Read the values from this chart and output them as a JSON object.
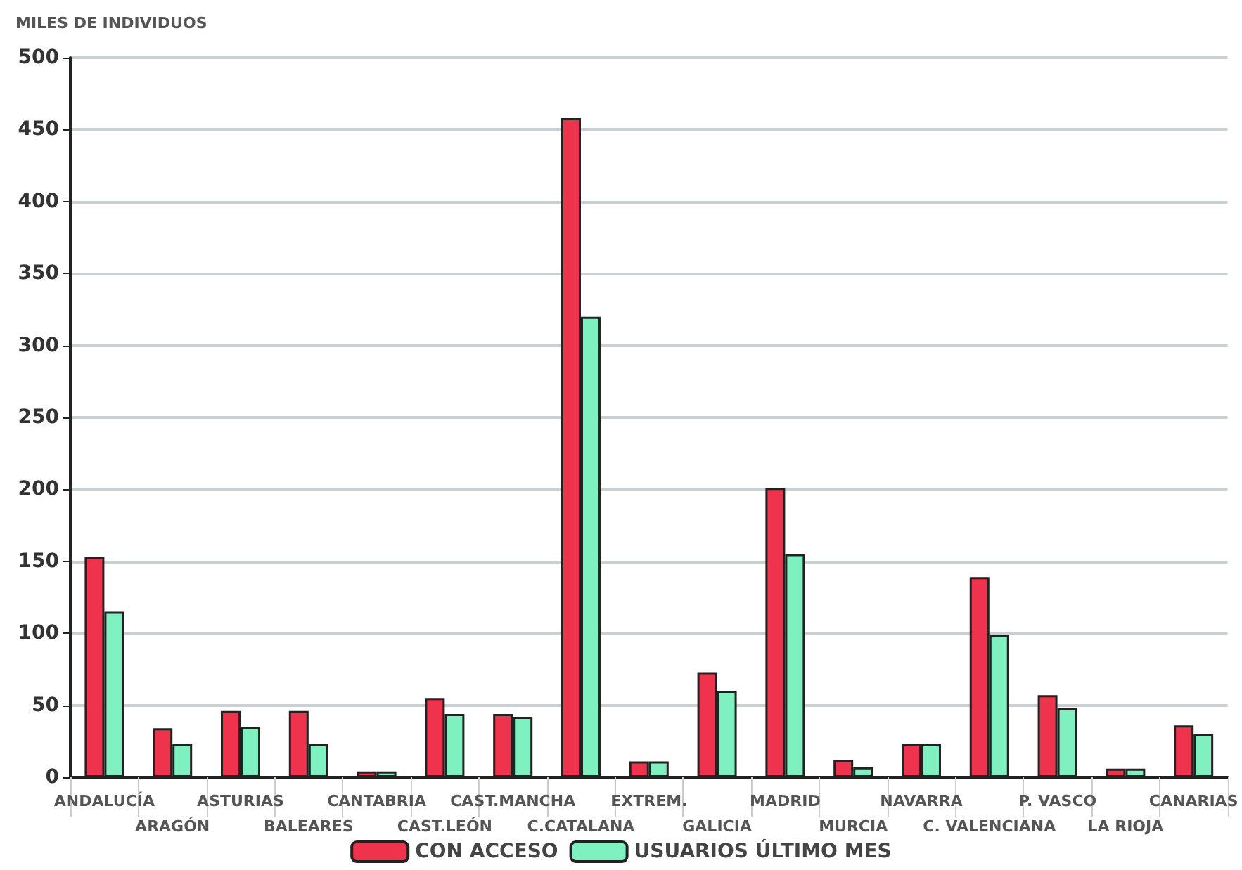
{
  "chart_data": {
    "type": "bar",
    "ylabel": "MILES DE INDIVIDUOS",
    "categories": [
      "ANDALUCÍA",
      "ARAGÓN",
      "ASTURIAS",
      "BALEARES",
      "CANTABRIA",
      "CAST.LEÓN",
      "CAST.MANCHA",
      "C.CATALANA",
      "EXTREM.",
      "GALICIA",
      "MADRID",
      "MURCIA",
      "NAVARRA",
      "C. VALENCIANA",
      "P. VASCO",
      "LA RIOJA",
      "CANARIAS"
    ],
    "series": [
      {
        "name": "CON ACCESO",
        "color": "#f0334d",
        "values": [
          153,
          34,
          46,
          46,
          4,
          55,
          44,
          458,
          11,
          73,
          201,
          12,
          23,
          139,
          57,
          6,
          36
        ]
      },
      {
        "name": "USUARIOS ÚLTIMO MES",
        "color": "#7ff0c0",
        "values": [
          115,
          23,
          35,
          23,
          4,
          44,
          42,
          320,
          11,
          60,
          155,
          7,
          23,
          99,
          48,
          6,
          30
        ]
      }
    ],
    "ylim": [
      0,
      500
    ],
    "yticks": [
      0,
      50,
      100,
      150,
      200,
      250,
      300,
      350,
      400,
      450,
      500
    ],
    "grid": "y",
    "legend": "bottom"
  }
}
